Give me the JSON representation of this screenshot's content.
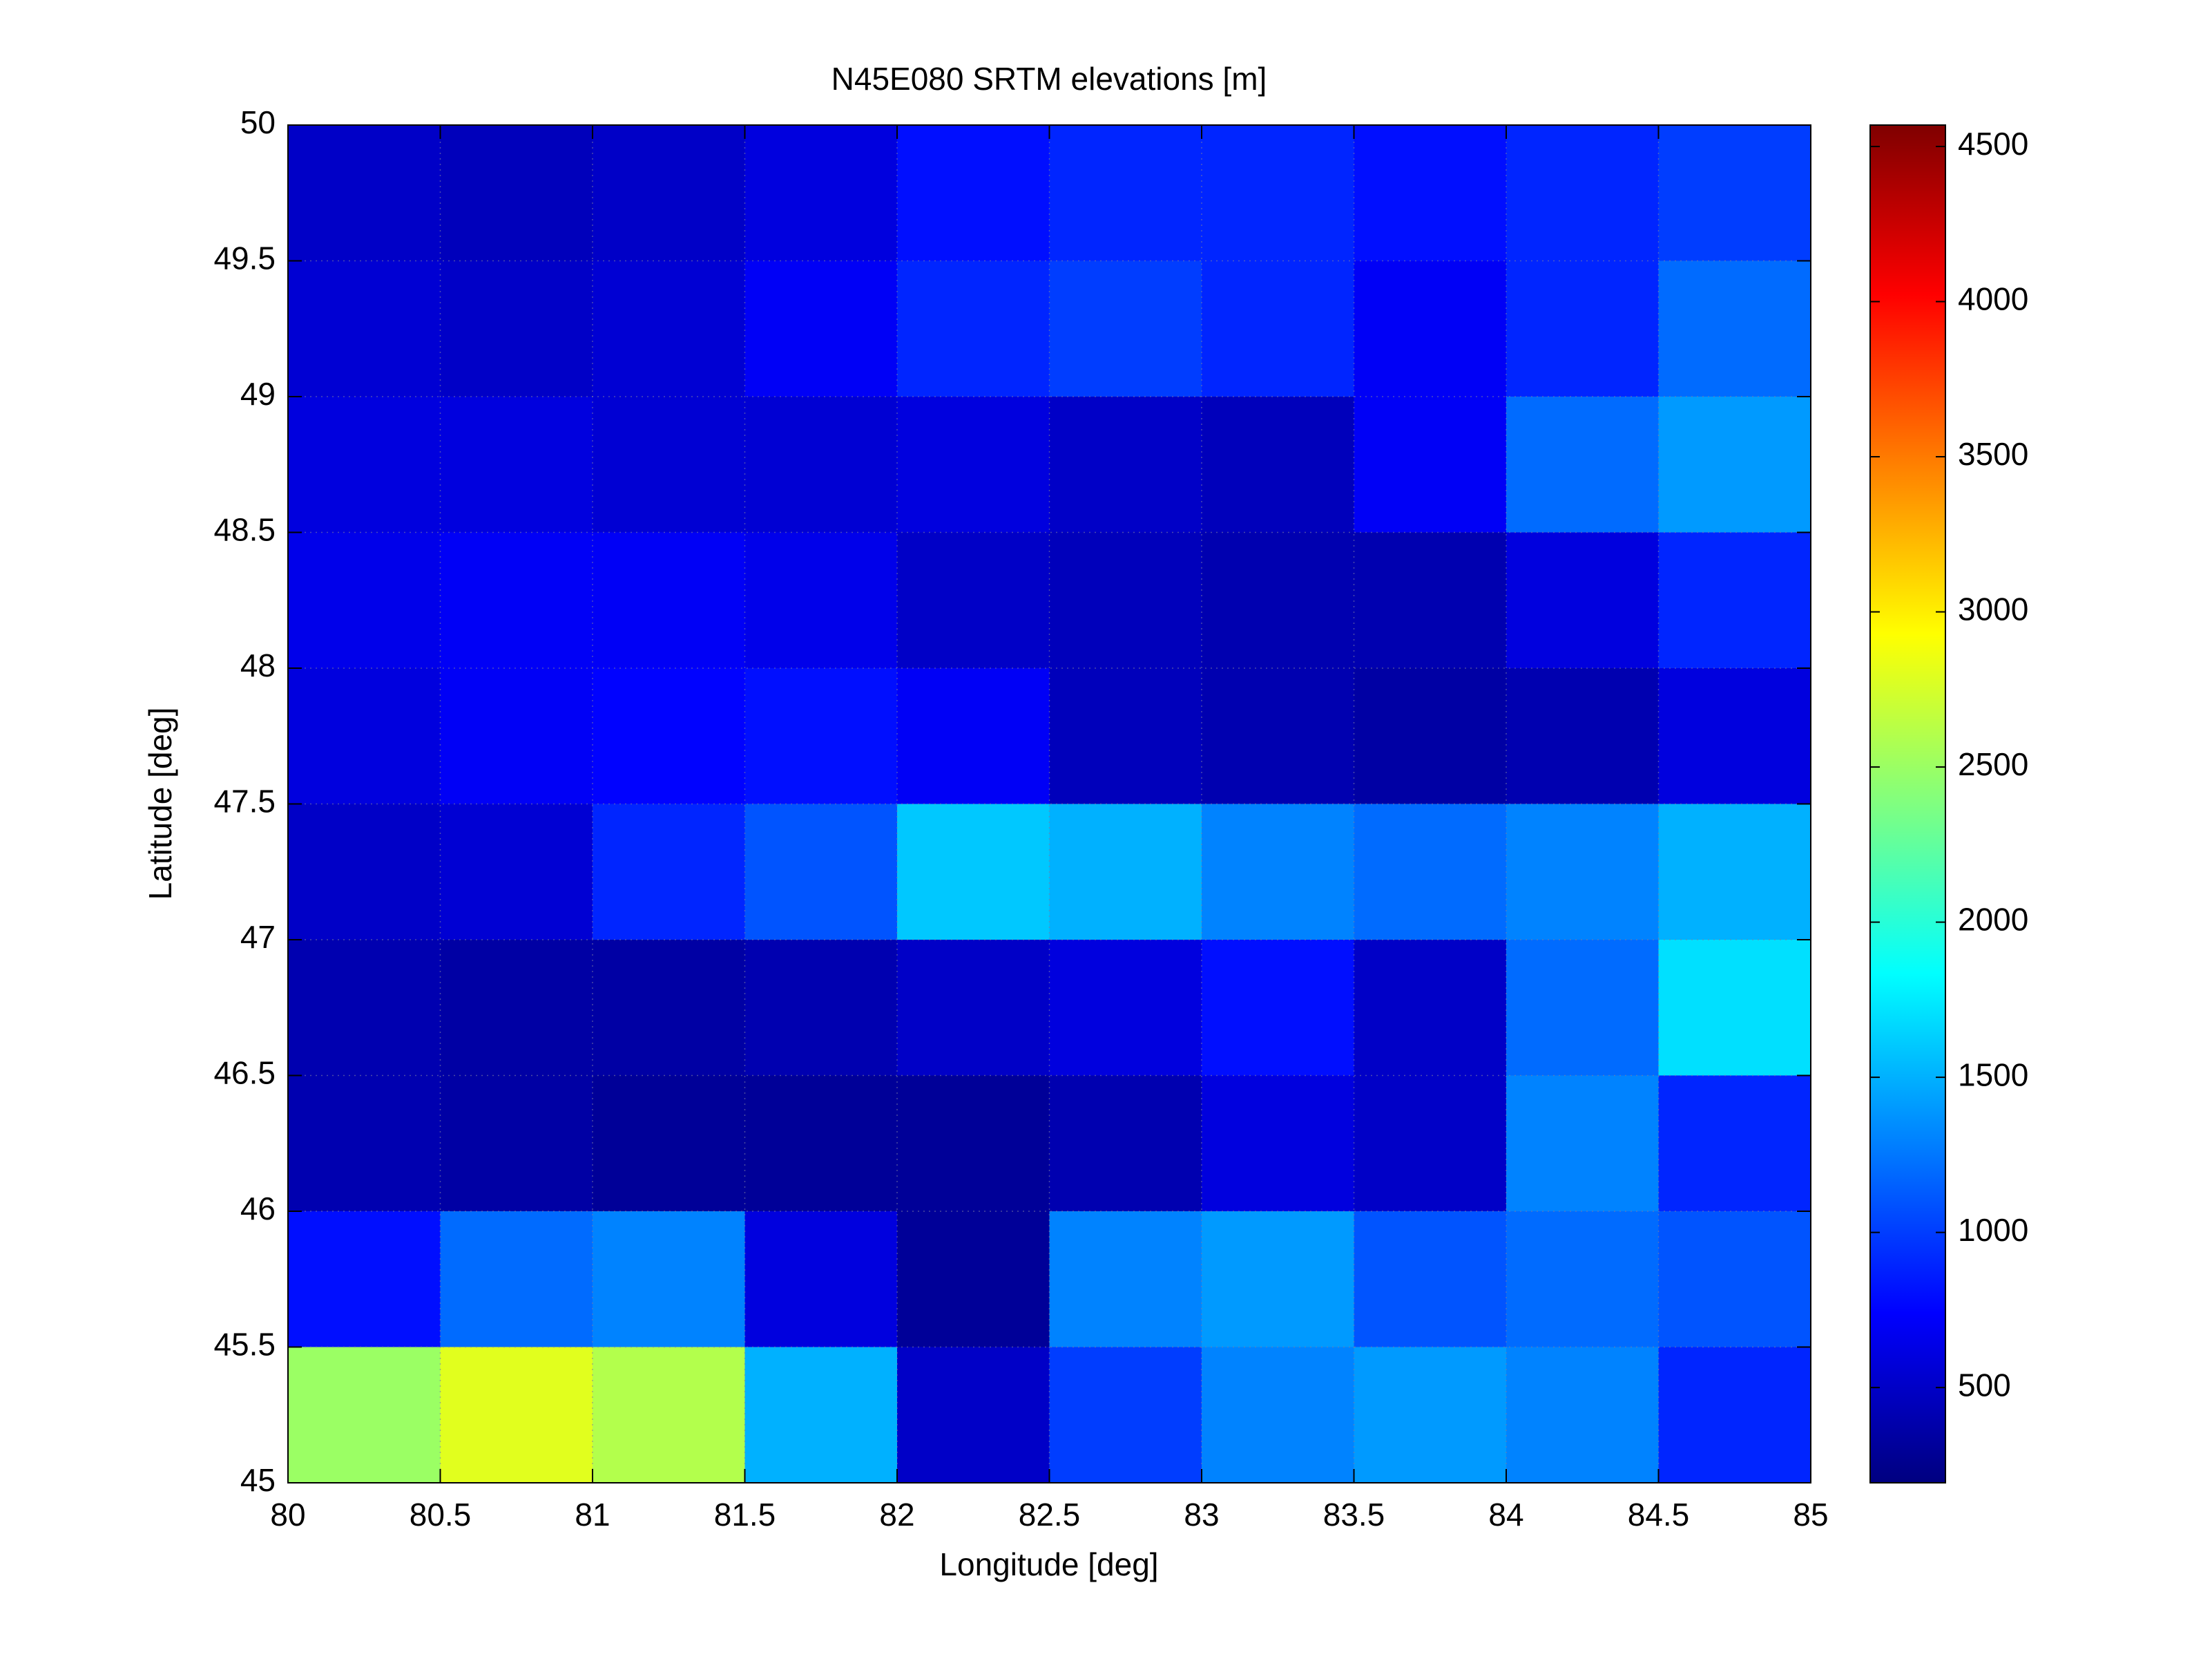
{
  "chart_data": {
    "type": "heatmap",
    "title": "N45E080 SRTM elevations [m]",
    "x_label": "Longitude [deg]",
    "y_label": "Latitude [deg]",
    "x": [
      80.25,
      80.75,
      81.25,
      81.75,
      82.25,
      82.75,
      83.25,
      83.75,
      84.25,
      84.75
    ],
    "y": [
      49.75,
      49.25,
      48.75,
      48.25,
      47.75,
      47.25,
      46.75,
      46.25,
      45.75,
      45.25
    ],
    "z": [
      [
        500,
        450,
        500,
        600,
        800,
        900,
        900,
        800,
        900,
        1000
      ],
      [
        550,
        500,
        550,
        700,
        900,
        1000,
        900,
        700,
        900,
        1200
      ],
      [
        600,
        600,
        550,
        550,
        600,
        500,
        450,
        700,
        1200,
        1400
      ],
      [
        650,
        700,
        700,
        650,
        500,
        450,
        400,
        400,
        600,
        900
      ],
      [
        600,
        700,
        750,
        800,
        700,
        450,
        400,
        350,
        400,
        600
      ],
      [
        500,
        550,
        900,
        1100,
        1600,
        1500,
        1300,
        1200,
        1300,
        1500
      ],
      [
        400,
        350,
        350,
        400,
        500,
        600,
        800,
        500,
        1200,
        1700
      ],
      [
        400,
        350,
        300,
        300,
        300,
        400,
        600,
        500,
        1300,
        900
      ],
      [
        800,
        1200,
        1300,
        600,
        300,
        1300,
        1400,
        1100,
        1200,
        1100
      ],
      [
        2500,
        2800,
        2600,
        1500,
        500,
        1000,
        1300,
        1400,
        1300,
        900
      ]
    ],
    "colormap": "jet",
    "clim": [
      193,
      4569
    ],
    "cticks": [
      500,
      1000,
      1500,
      2000,
      2500,
      3000,
      3500,
      4000,
      4500
    ],
    "xlim": [
      80,
      85
    ],
    "xticks": [
      80,
      80.5,
      81,
      81.5,
      82,
      82.5,
      83,
      83.5,
      84,
      84.5,
      85
    ],
    "ylim": [
      45,
      50
    ],
    "yticks": [
      45,
      45.5,
      46,
      46.5,
      47,
      47.5,
      48,
      48.5,
      49,
      49.5,
      50
    ],
    "grid": true
  }
}
